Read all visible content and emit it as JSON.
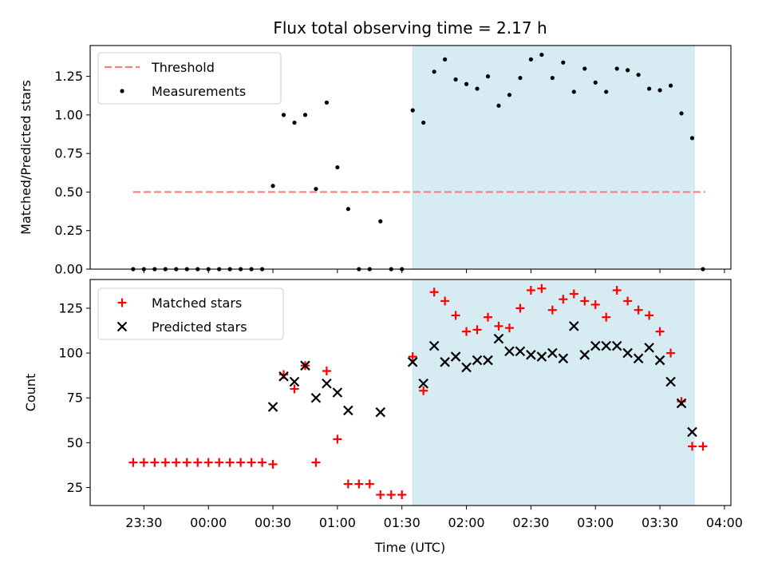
{
  "chart_data": [
    {
      "type": "scatter",
      "title": "Flux total observing time = 2.17 h",
      "xlabel": "",
      "ylabel": "Matched/Predicted stars",
      "ylim": [
        0,
        1.45
      ],
      "yticks": [
        0.0,
        0.25,
        0.5,
        0.75,
        1.0,
        1.25
      ],
      "ytick_labels": [
        "0.00",
        "0.25",
        "0.50",
        "0.75",
        "1.00",
        "1.25"
      ],
      "shaded_interval": [
        "01:35",
        "03:46"
      ],
      "legend_position": "top-left",
      "threshold": {
        "name": "Threshold",
        "color": "#f77f7f",
        "y": 0.5,
        "x_range": [
          "23:25",
          "03:51"
        ]
      },
      "series": [
        {
          "name": "Measurements",
          "color": "#000000",
          "points": [
            [
              "23:25",
              0.0
            ],
            [
              "23:30",
              0.0
            ],
            [
              "23:35",
              0.0
            ],
            [
              "23:40",
              0.0
            ],
            [
              "23:45",
              0.0
            ],
            [
              "23:50",
              0.0
            ],
            [
              "23:55",
              0.0
            ],
            [
              "00:00",
              0.0
            ],
            [
              "00:05",
              0.0
            ],
            [
              "00:10",
              0.0
            ],
            [
              "00:15",
              0.0
            ],
            [
              "00:20",
              0.0
            ],
            [
              "00:25",
              0.0
            ],
            [
              "00:30",
              0.54
            ],
            [
              "00:35",
              1.0
            ],
            [
              "00:40",
              0.95
            ],
            [
              "00:45",
              1.0
            ],
            [
              "00:50",
              0.52
            ],
            [
              "00:55",
              1.08
            ],
            [
              "01:00",
              0.66
            ],
            [
              "01:05",
              0.39
            ],
            [
              "01:10",
              0.0
            ],
            [
              "01:15",
              0.0
            ],
            [
              "01:20",
              0.31
            ],
            [
              "01:25",
              0.0
            ],
            [
              "01:30",
              0.0
            ],
            [
              "01:35",
              1.03
            ],
            [
              "01:40",
              0.95
            ],
            [
              "01:45",
              1.28
            ],
            [
              "01:50",
              1.36
            ],
            [
              "01:55",
              1.23
            ],
            [
              "02:00",
              1.2
            ],
            [
              "02:05",
              1.17
            ],
            [
              "02:10",
              1.25
            ],
            [
              "02:15",
              1.06
            ],
            [
              "02:20",
              1.13
            ],
            [
              "02:25",
              1.24
            ],
            [
              "02:30",
              1.36
            ],
            [
              "02:35",
              1.39
            ],
            [
              "02:40",
              1.24
            ],
            [
              "02:45",
              1.34
            ],
            [
              "02:50",
              1.15
            ],
            [
              "02:55",
              1.3
            ],
            [
              "03:00",
              1.21
            ],
            [
              "03:05",
              1.15
            ],
            [
              "03:10",
              1.3
            ],
            [
              "03:15",
              1.29
            ],
            [
              "03:20",
              1.26
            ],
            [
              "03:25",
              1.17
            ],
            [
              "03:30",
              1.16
            ],
            [
              "03:35",
              1.19
            ],
            [
              "03:40",
              1.01
            ],
            [
              "03:45",
              0.85
            ],
            [
              "03:50",
              0.0
            ]
          ]
        }
      ]
    },
    {
      "type": "scatter",
      "xlabel": "Time (UTC)",
      "ylabel": "Count",
      "ylim": [
        15,
        141
      ],
      "yticks": [
        25,
        50,
        75,
        100,
        125
      ],
      "ytick_labels": [
        "25",
        "50",
        "75",
        "100",
        "125"
      ],
      "xlim": [
        "23:05",
        "04:03"
      ],
      "xticks": [
        "23:30",
        "00:00",
        "00:30",
        "01:00",
        "01:30",
        "02:00",
        "02:30",
        "03:00",
        "03:30",
        "04:00"
      ],
      "shaded_interval": [
        "01:35",
        "03:46"
      ],
      "legend_position": "top-left",
      "series": [
        {
          "name": "Matched stars",
          "color": "#ff0000",
          "marker": "plus",
          "points": [
            [
              "23:25",
              39
            ],
            [
              "23:30",
              39
            ],
            [
              "23:35",
              39
            ],
            [
              "23:40",
              39
            ],
            [
              "23:45",
              39
            ],
            [
              "23:50",
              39
            ],
            [
              "23:55",
              39
            ],
            [
              "00:00",
              39
            ],
            [
              "00:05",
              39
            ],
            [
              "00:10",
              39
            ],
            [
              "00:15",
              39
            ],
            [
              "00:20",
              39
            ],
            [
              "00:25",
              39
            ],
            [
              "00:30",
              38
            ],
            [
              "00:35",
              88
            ],
            [
              "00:40",
              80
            ],
            [
              "00:45",
              93
            ],
            [
              "00:50",
              39
            ],
            [
              "00:55",
              90
            ],
            [
              "01:00",
              52
            ],
            [
              "01:05",
              27
            ],
            [
              "01:10",
              27
            ],
            [
              "01:15",
              27
            ],
            [
              "01:20",
              21
            ],
            [
              "01:25",
              21
            ],
            [
              "01:30",
              21
            ],
            [
              "01:35",
              98
            ],
            [
              "01:40",
              79
            ],
            [
              "01:45",
              134
            ],
            [
              "01:50",
              129
            ],
            [
              "01:55",
              121
            ],
            [
              "02:00",
              112
            ],
            [
              "02:05",
              113
            ],
            [
              "02:10",
              120
            ],
            [
              "02:15",
              115
            ],
            [
              "02:20",
              114
            ],
            [
              "02:25",
              125
            ],
            [
              "02:30",
              135
            ],
            [
              "02:35",
              136
            ],
            [
              "02:40",
              124
            ],
            [
              "02:45",
              130
            ],
            [
              "02:50",
              133
            ],
            [
              "02:55",
              129
            ],
            [
              "03:00",
              127
            ],
            [
              "03:05",
              120
            ],
            [
              "03:10",
              135
            ],
            [
              "03:15",
              129
            ],
            [
              "03:20",
              124
            ],
            [
              "03:25",
              121
            ],
            [
              "03:30",
              112
            ],
            [
              "03:35",
              100
            ],
            [
              "03:40",
              73
            ],
            [
              "03:45",
              48
            ],
            [
              "03:50",
              48
            ]
          ]
        },
        {
          "name": "Predicted stars",
          "color": "#000000",
          "marker": "x",
          "points": [
            [
              "00:30",
              70
            ],
            [
              "00:35",
              87
            ],
            [
              "00:40",
              84
            ],
            [
              "00:45",
              93
            ],
            [
              "00:50",
              75
            ],
            [
              "00:55",
              83
            ],
            [
              "01:00",
              78
            ],
            [
              "01:05",
              68
            ],
            [
              "01:20",
              67
            ],
            [
              "01:35",
              95
            ],
            [
              "01:40",
              83
            ],
            [
              "01:45",
              104
            ],
            [
              "01:50",
              95
            ],
            [
              "01:55",
              98
            ],
            [
              "02:00",
              92
            ],
            [
              "02:05",
              96
            ],
            [
              "02:10",
              96
            ],
            [
              "02:15",
              108
            ],
            [
              "02:20",
              101
            ],
            [
              "02:25",
              101
            ],
            [
              "02:30",
              99
            ],
            [
              "02:35",
              98
            ],
            [
              "02:40",
              100
            ],
            [
              "02:45",
              97
            ],
            [
              "02:50",
              115
            ],
            [
              "02:55",
              99
            ],
            [
              "03:00",
              104
            ],
            [
              "03:05",
              104
            ],
            [
              "03:10",
              104
            ],
            [
              "03:15",
              100
            ],
            [
              "03:20",
              97
            ],
            [
              "03:25",
              103
            ],
            [
              "03:30",
              96
            ],
            [
              "03:35",
              84
            ],
            [
              "03:40",
              72
            ],
            [
              "03:45",
              56
            ]
          ]
        }
      ]
    }
  ]
}
